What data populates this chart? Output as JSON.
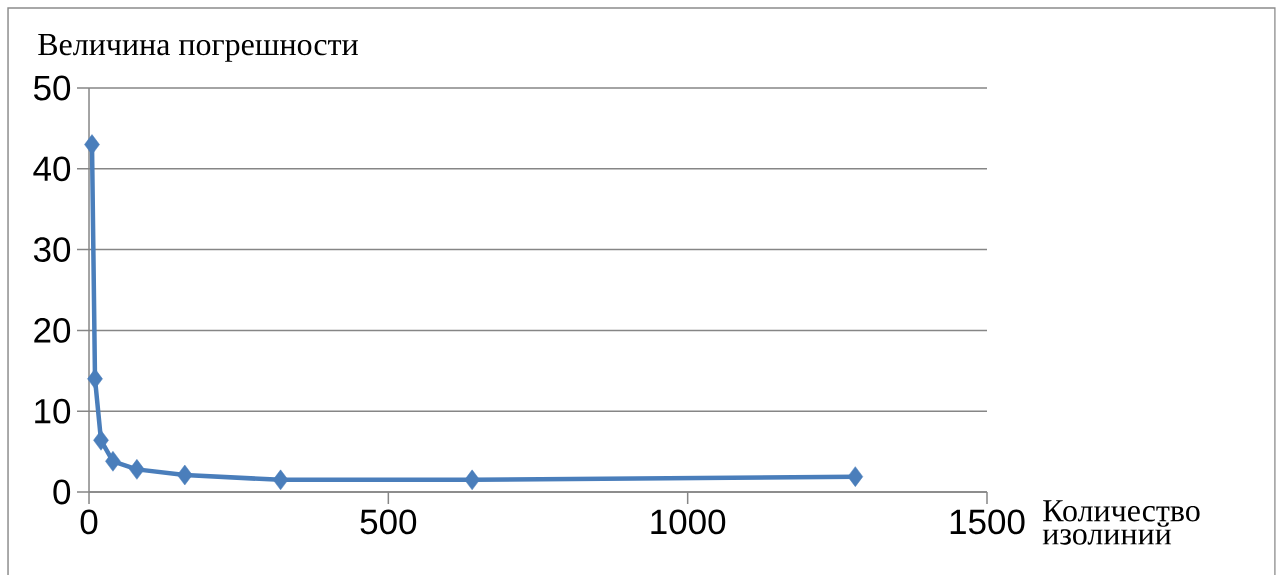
{
  "chart_data": {
    "type": "line",
    "xlabel": "Количество изолиний",
    "ylabel": "Величина погрешности",
    "x": [
      5,
      10,
      20,
      40,
      80,
      160,
      320,
      640,
      1280
    ],
    "series": [
      {
        "color": "#4a7ebb",
        "values": [
          43,
          14,
          6.4,
          3.8,
          2.8,
          2.1,
          1.5,
          1.5,
          1.9
        ]
      }
    ],
    "xlim": [
      0,
      1500
    ],
    "ylim": [
      0,
      50
    ],
    "xticks": [
      0,
      500,
      1000,
      1500
    ],
    "yticks": [
      0,
      10,
      20,
      30,
      40,
      50
    ],
    "grid": "y",
    "marker": "diamond",
    "line_style": "solid"
  }
}
